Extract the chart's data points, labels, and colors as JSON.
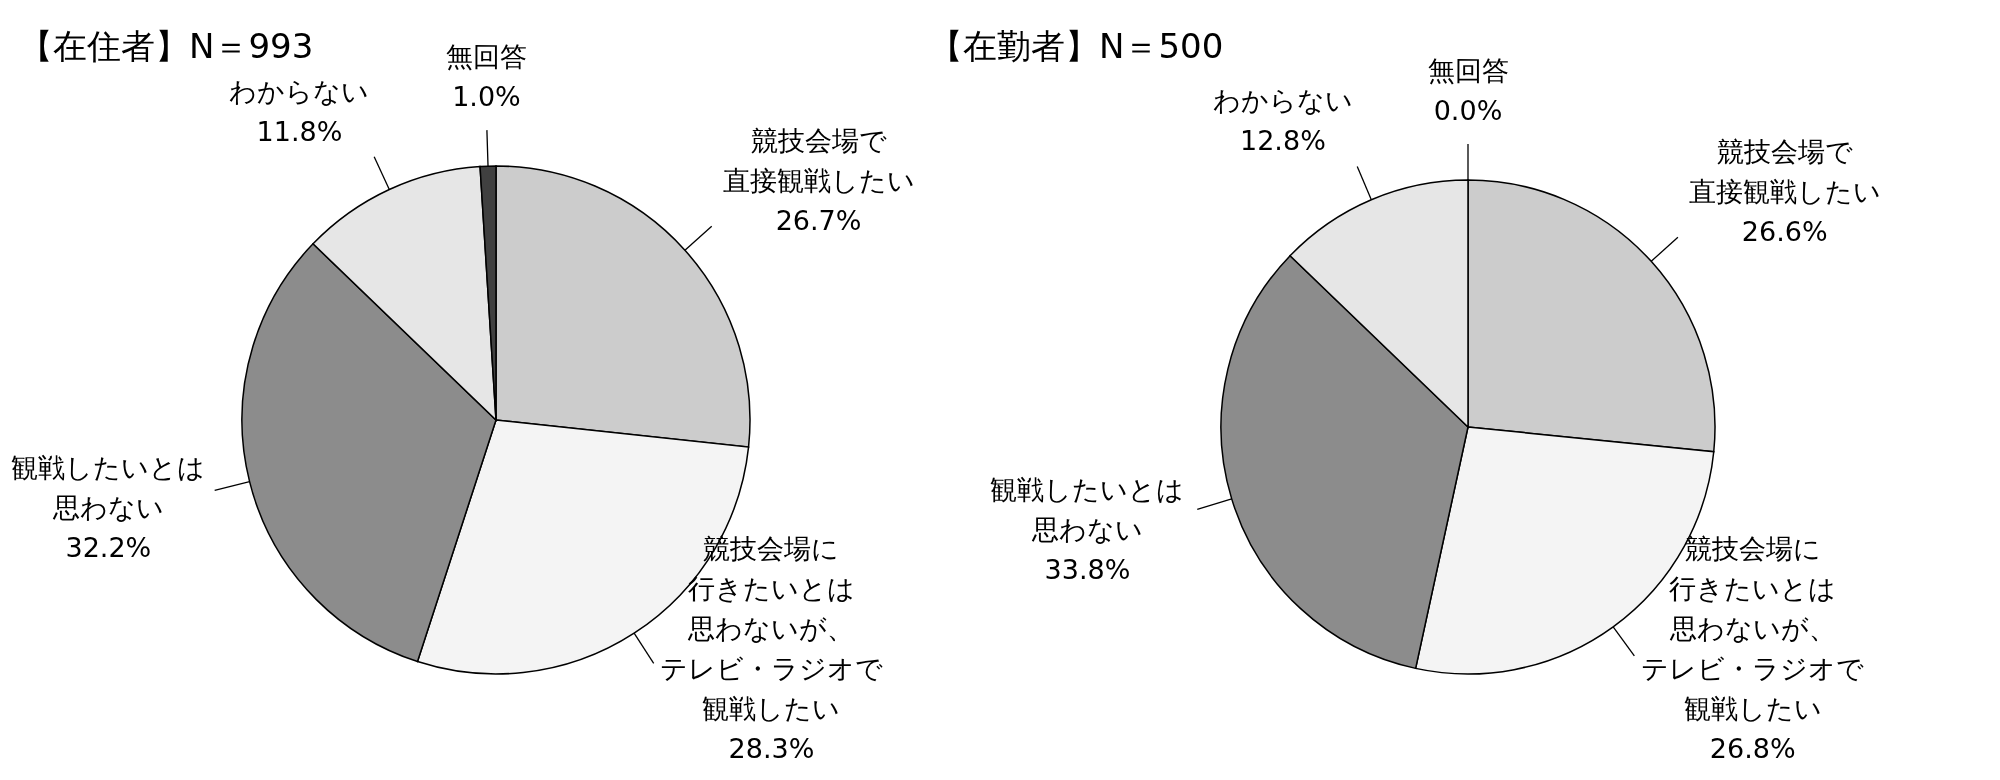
{
  "chart_data": [
    {
      "type": "pie",
      "title": "【在住者】N＝993",
      "categories": [
        "競技会場で直接観戦したい",
        "競技会場に行きたいとは思わないが、テレビ・ラジオで観戦したい",
        "観戦したいとは思わない",
        "わからない",
        "無回答"
      ],
      "values": [
        26.7,
        28.3,
        32.2,
        11.8,
        1.0
      ],
      "colors": [
        "#cccccc",
        "#f4f4f4",
        "#8c8c8c",
        "#e6e6e6",
        "#404040"
      ],
      "value_labels": [
        "26.7%",
        "28.3%",
        "32.2%",
        "11.8%",
        "1.0%"
      ]
    },
    {
      "type": "pie",
      "title": "【在勤者】N＝500",
      "categories": [
        "競技会場で直接観戦したい",
        "競技会場に行きたいとは思わないが、テレビ・ラジオで観戦したい",
        "観戦したいとは思わない",
        "わからない",
        "無回答"
      ],
      "values": [
        26.6,
        26.8,
        33.8,
        12.8,
        0.0
      ],
      "colors": [
        "#cccccc",
        "#f4f4f4",
        "#8c8c8c",
        "#e6e6e6",
        "#404040"
      ],
      "value_labels": [
        "26.6%",
        "26.8%",
        "33.8%",
        "12.8%",
        "0.0%"
      ]
    }
  ]
}
